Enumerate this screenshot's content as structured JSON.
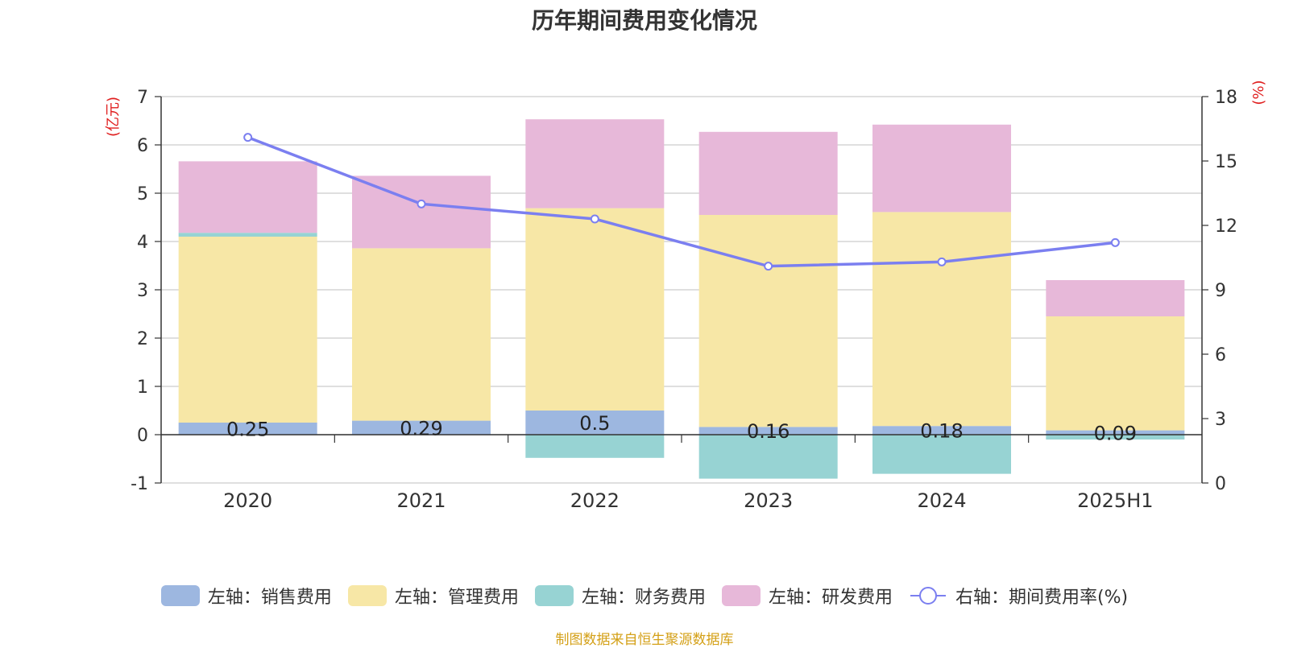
{
  "title": "历年期间费用变化情况",
  "source_note": "制图数据来自恒生聚源数据库",
  "colors": {
    "sales": "#9db7e0",
    "admin": "#f7e7a6",
    "finance": "#97d3d3",
    "rnd": "#e7b8d9",
    "rate_line": "#7b7ff0",
    "axis_unit": "#e02020",
    "source": "#d4a017"
  },
  "legend": [
    {
      "label": "左轴：销售费用",
      "color": "#9db7e0",
      "kind": "bar"
    },
    {
      "label": "左轴：管理费用",
      "color": "#f7e7a6",
      "kind": "bar"
    },
    {
      "label": "左轴：财务费用",
      "color": "#97d3d3",
      "kind": "bar"
    },
    {
      "label": "左轴：研发费用",
      "color": "#e7b8d9",
      "kind": "bar"
    },
    {
      "label": "右轴：期间费用率(%)",
      "color": "#7b7ff0",
      "kind": "line"
    }
  ],
  "chart_data": {
    "type": "bar",
    "title": "历年期间费用变化情况",
    "categories": [
      "2020",
      "2021",
      "2022",
      "2023",
      "2024",
      "2025H1"
    ],
    "y_left": {
      "unit_label": "(亿元)",
      "ylim": [
        -1,
        7
      ],
      "ticks": [
        "-1",
        "0",
        "1",
        "2",
        "3",
        "4",
        "5",
        "6",
        "7"
      ]
    },
    "y_right": {
      "unit_label": "(%)",
      "ylim": [
        0,
        18
      ],
      "ticks": [
        "0",
        "3",
        "6",
        "9",
        "12",
        "15",
        "18"
      ]
    },
    "grid": true,
    "legend_position": "bottom",
    "series": [
      {
        "name": "左轴：销售费用",
        "axis": "left",
        "stack": true,
        "values": [
          0.25,
          0.29,
          0.5,
          0.16,
          0.18,
          0.09
        ],
        "labels": [
          "0.25",
          "0.29",
          "0.5",
          "0.16",
          "0.18",
          "0.09"
        ]
      },
      {
        "name": "左轴：管理费用",
        "axis": "left",
        "stack": true,
        "values": [
          3.85,
          3.57,
          4.19,
          4.39,
          4.43,
          2.36
        ]
      },
      {
        "name": "左轴：财务费用",
        "axis": "left",
        "stack": true,
        "values": [
          0.08,
          0.0,
          -0.48,
          -0.91,
          -0.81,
          -0.1
        ]
      },
      {
        "name": "左轴：研发费用",
        "axis": "left",
        "stack": true,
        "values": [
          1.48,
          1.5,
          1.84,
          1.72,
          1.81,
          0.75
        ]
      },
      {
        "name": "右轴：期间费用率(%)",
        "axis": "right",
        "type": "line",
        "values": [
          16.1,
          13.0,
          12.3,
          10.1,
          10.3,
          11.2
        ]
      }
    ]
  }
}
